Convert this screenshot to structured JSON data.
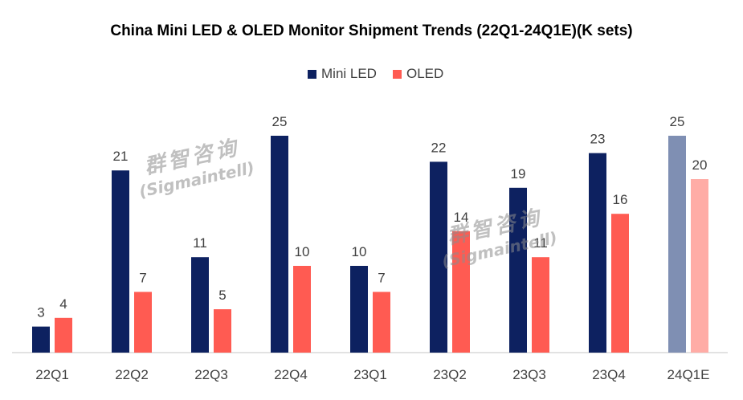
{
  "chart_data": {
    "type": "bar",
    "title": "China Mini LED & OLED Monitor Shipment Trends (22Q1-24Q1E)(K sets)",
    "categories": [
      "22Q1",
      "22Q2",
      "22Q3",
      "22Q4",
      "23Q1",
      "23Q2",
      "23Q3",
      "23Q4",
      "24Q1E"
    ],
    "series": [
      {
        "name": "Mini LED",
        "values": [
          3,
          21,
          11,
          25,
          10,
          22,
          19,
          23,
          25
        ],
        "color": "#0d2160",
        "estimate_color": "#7f8fb3"
      },
      {
        "name": "OLED",
        "values": [
          4,
          7,
          5,
          10,
          7,
          14,
          11,
          16,
          20
        ],
        "color": "#ff5b52",
        "estimate_color": "#ffaca6"
      }
    ],
    "ylim": [
      0,
      25
    ],
    "estimate_index": 8,
    "legend_position": "top-center",
    "grid": false,
    "xlabel": "",
    "ylabel": ""
  },
  "watermark": {
    "cn": "群智咨询",
    "en": "(Sigmaintell)"
  }
}
